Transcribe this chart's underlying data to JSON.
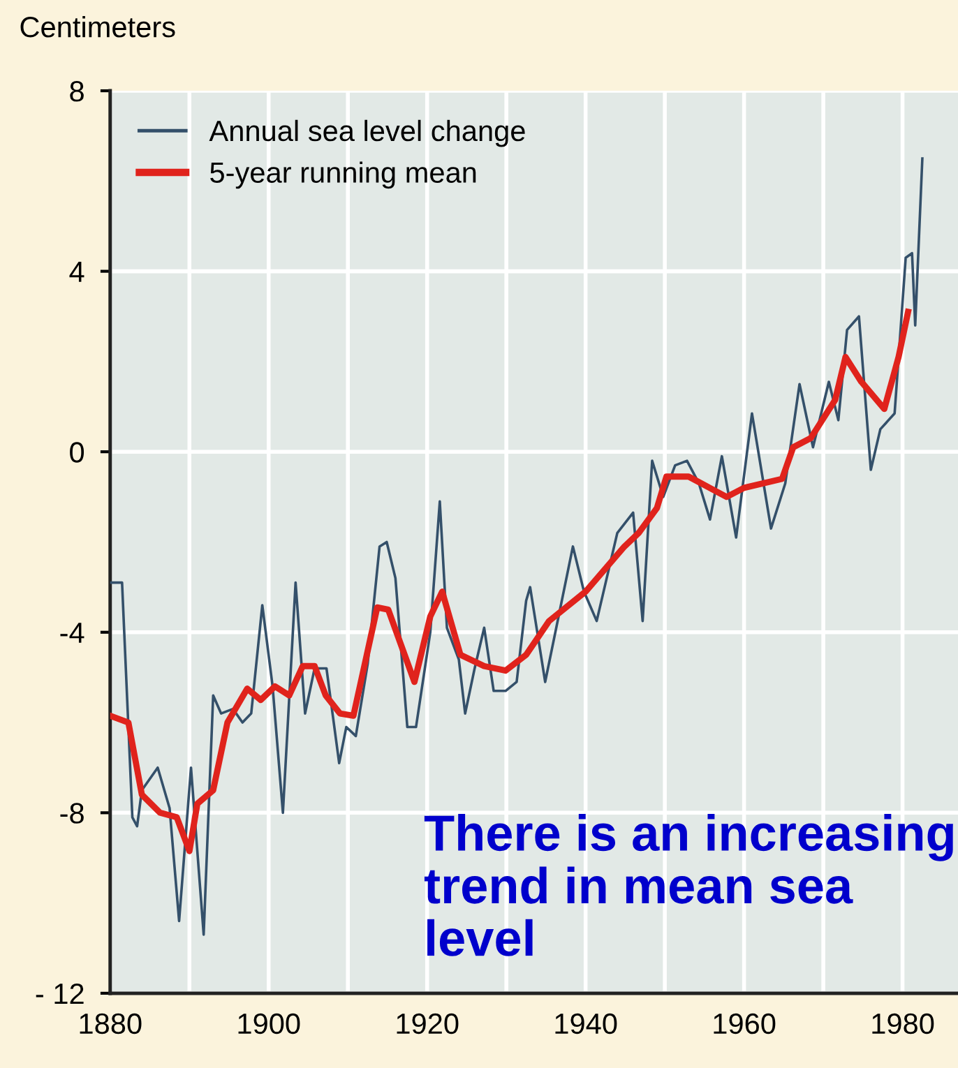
{
  "chart_data": {
    "type": "line",
    "ylabel": "Centimeters",
    "annotations": [
      "There is an increasing trend in mean sea level"
    ],
    "series": [
      {
        "name": "Annual sea level change",
        "color": "#34506a",
        "x": [
          1880,
          1881.5,
          1882.8,
          1883.4,
          1884,
          1886,
          1887.5,
          1888.7,
          1890.2,
          1891.8,
          1893,
          1894,
          1895.5,
          1896.7,
          1897.8,
          1899.2,
          1900.5,
          1901.8,
          1903.4,
          1904.6,
          1905.8,
          1907.3,
          1908.9,
          1909.8,
          1911,
          1912.5,
          1914,
          1914.9,
          1916,
          1917.5,
          1918.6,
          1920.4,
          1921.6,
          1922.5,
          1924,
          1924.8,
          1926,
          1927.2,
          1928.4,
          1929.9,
          1931.3,
          1932.5,
          1933,
          1934.9,
          1938.4,
          1939.8,
          1941.4,
          1944,
          1946,
          1947.2,
          1948.4,
          1949.8,
          1951.3,
          1952.8,
          1954.3,
          1955.7,
          1957.2,
          1959,
          1961,
          1963.4,
          1965.2,
          1967,
          1968.7,
          1970.7,
          1971.9,
          1973,
          1974.5,
          1976,
          1977.2,
          1979,
          1980.4,
          1981.2,
          1981.6,
          1982.5
        ],
        "values": [
          -2.9,
          -2.9,
          -8.1,
          -8.3,
          -7.5,
          -7.0,
          -7.9,
          -10.4,
          -7.0,
          -10.7,
          -5.4,
          -5.8,
          -5.7,
          -6.0,
          -5.8,
          -3.4,
          -5.2,
          -8.0,
          -2.9,
          -5.8,
          -4.8,
          -4.8,
          -6.9,
          -6.1,
          -6.3,
          -4.7,
          -2.1,
          -2.0,
          -2.8,
          -6.1,
          -6.1,
          -4.0,
          -1.1,
          -3.9,
          -4.6,
          -5.8,
          -4.8,
          -3.9,
          -5.3,
          -5.3,
          -5.1,
          -3.3,
          -3.0,
          -5.1,
          -2.1,
          -3.1,
          -3.75,
          -1.8,
          -1.35,
          -3.75,
          -0.2,
          -1.0,
          -0.3,
          -0.2,
          -0.7,
          -1.5,
          -0.1,
          -1.9,
          0.85,
          -1.7,
          -0.7,
          1.5,
          0.1,
          1.55,
          0.7,
          2.7,
          3.0,
          -0.4,
          0.5,
          0.85,
          4.3,
          4.4,
          2.8,
          6.5
        ]
      },
      {
        "name": "5-year running mean",
        "color": "#e0231c",
        "x": [
          1880,
          1882.3,
          1884,
          1886.3,
          1888.4,
          1890,
          1891,
          1893,
          1894.8,
          1897.3,
          1899,
          1900.8,
          1902.6,
          1904.3,
          1905.8,
          1907.2,
          1909,
          1910.7,
          1913.7,
          1915.1,
          1918.4,
          1920.4,
          1921.9,
          1924.2,
          1927.2,
          1929.9,
          1932.5,
          1935.4,
          1940,
          1944.9,
          1946.7,
          1949,
          1950.2,
          1953,
          1957.8,
          1960,
          1964.8,
          1966.2,
          1968.4,
          1971.5,
          1972.8,
          1974.8,
          1977.7,
          1979.5,
          1980.7
        ],
        "values": [
          -5.85,
          -6.0,
          -7.6,
          -8.0,
          -8.1,
          -8.85,
          -7.8,
          -7.5,
          -6.0,
          -5.25,
          -5.5,
          -5.2,
          -5.4,
          -4.75,
          -4.75,
          -5.4,
          -5.8,
          -5.85,
          -3.45,
          -3.5,
          -5.1,
          -3.65,
          -3.1,
          -4.5,
          -4.75,
          -4.85,
          -4.5,
          -3.75,
          -3.1,
          -2.1,
          -1.8,
          -1.25,
          -0.55,
          -0.55,
          -1.0,
          -0.8,
          -0.6,
          0.1,
          0.3,
          1.15,
          2.1,
          1.55,
          0.95,
          2.1,
          3.1
        ]
      }
    ],
    "xlim": [
      1880,
      1987
    ],
    "xticks": [
      1880,
      {
        "value": 1890,
        "label": null
      },
      1900,
      {
        "value": 1910,
        "label": null
      },
      1920,
      {
        "value": 1930,
        "label": null
      },
      1940,
      {
        "value": 1950,
        "label": null
      },
      1960,
      {
        "value": 1970,
        "label": null
      },
      1980
    ],
    "ylim": [
      -12,
      8
    ],
    "yticks": [
      {
        "value": -12,
        "label": "- 12"
      },
      -8,
      -4,
      0,
      4,
      8
    ],
    "grid": true,
    "legend": "top left",
    "line_style": "solid",
    "marker": "none"
  }
}
